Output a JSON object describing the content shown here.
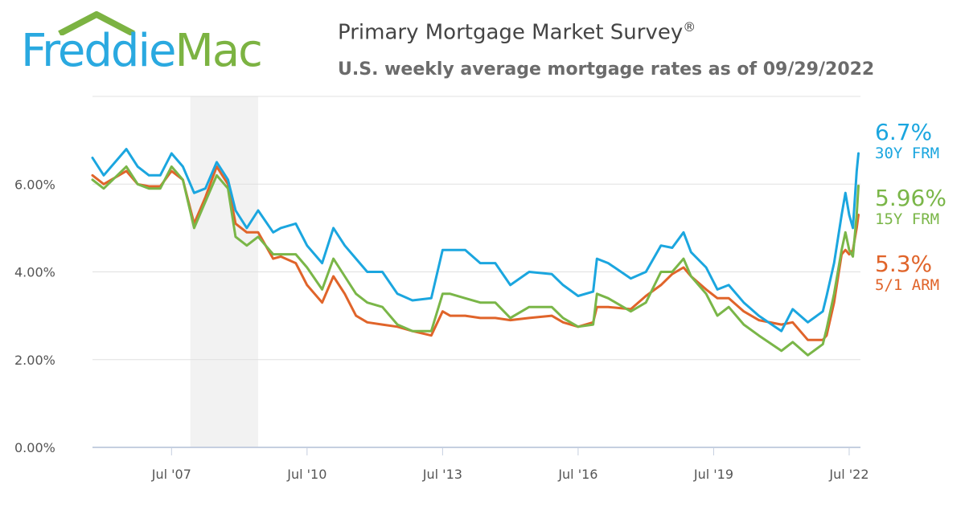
{
  "logo": {
    "part1": "Freddie",
    "part2": "Mac",
    "roof_color": "#7cb342"
  },
  "header": {
    "title": "Primary Mortgage Market Survey",
    "title_mark": "®",
    "subtitle": "U.S. weekly average mortgage rates as of 09/29/2022"
  },
  "chart_data": {
    "type": "line",
    "title": "Primary Mortgage Market Survey®",
    "subtitle": "U.S. weekly average mortgage rates as of 09/29/2022",
    "xlabel": "",
    "ylabel": "",
    "xlim": [
      "2005-10",
      "2022-10"
    ],
    "ylim": [
      0,
      8
    ],
    "x_ticks": [
      {
        "date": "2007-07",
        "label": "Jul '07"
      },
      {
        "date": "2010-07",
        "label": "Jul '10"
      },
      {
        "date": "2013-07",
        "label": "Jul '13"
      },
      {
        "date": "2016-07",
        "label": "Jul '16"
      },
      {
        "date": "2019-07",
        "label": "Jul '19"
      },
      {
        "date": "2022-07",
        "label": "Jul '22"
      }
    ],
    "y_ticks": [
      {
        "value": 0,
        "label": "0.00%"
      },
      {
        "value": 2,
        "label": "2.00%"
      },
      {
        "value": 4,
        "label": "4.00%"
      },
      {
        "value": 6,
        "label": "6.00%"
      }
    ],
    "grid": true,
    "shaded_period": {
      "start": "2007-12",
      "end": "2009-06",
      "color": "#f2f2f2"
    },
    "legend_placement": "right",
    "series": [
      {
        "name": "30Y FRM",
        "label": "6.7%",
        "color": "#1ba6df",
        "points": [
          [
            "2005-10",
            6.6
          ],
          [
            "2006-01",
            6.2
          ],
          [
            "2006-07",
            6.8
          ],
          [
            "2006-10",
            6.4
          ],
          [
            "2007-01",
            6.2
          ],
          [
            "2007-04",
            6.2
          ],
          [
            "2007-07",
            6.7
          ],
          [
            "2007-10",
            6.4
          ],
          [
            "2008-01",
            5.8
          ],
          [
            "2008-04",
            5.9
          ],
          [
            "2008-07",
            6.5
          ],
          [
            "2008-10",
            6.1
          ],
          [
            "2008-12",
            5.4
          ],
          [
            "2009-03",
            5.0
          ],
          [
            "2009-06",
            5.4
          ],
          [
            "2009-10",
            4.9
          ],
          [
            "2009-12",
            5.0
          ],
          [
            "2010-04",
            5.1
          ],
          [
            "2010-07",
            4.6
          ],
          [
            "2010-11",
            4.2
          ],
          [
            "2011-02",
            5.0
          ],
          [
            "2011-05",
            4.6
          ],
          [
            "2011-08",
            4.3
          ],
          [
            "2011-11",
            4.0
          ],
          [
            "2012-03",
            4.0
          ],
          [
            "2012-07",
            3.5
          ],
          [
            "2012-11",
            3.35
          ],
          [
            "2013-04",
            3.4
          ],
          [
            "2013-07",
            4.5
          ],
          [
            "2013-09",
            4.5
          ],
          [
            "2014-01",
            4.5
          ],
          [
            "2014-05",
            4.2
          ],
          [
            "2014-09",
            4.2
          ],
          [
            "2015-01",
            3.7
          ],
          [
            "2015-06",
            4.0
          ],
          [
            "2015-12",
            3.95
          ],
          [
            "2016-03",
            3.7
          ],
          [
            "2016-07",
            3.45
          ],
          [
            "2016-11",
            3.55
          ],
          [
            "2016-12",
            4.3
          ],
          [
            "2017-03",
            4.2
          ],
          [
            "2017-09",
            3.85
          ],
          [
            "2018-01",
            4.0
          ],
          [
            "2018-05",
            4.6
          ],
          [
            "2018-08",
            4.55
          ],
          [
            "2018-11",
            4.9
          ],
          [
            "2019-01",
            4.45
          ],
          [
            "2019-05",
            4.1
          ],
          [
            "2019-08",
            3.6
          ],
          [
            "2019-11",
            3.7
          ],
          [
            "2020-03",
            3.3
          ],
          [
            "2020-07",
            3.0
          ],
          [
            "2021-01",
            2.65
          ],
          [
            "2021-04",
            3.15
          ],
          [
            "2021-08",
            2.85
          ],
          [
            "2021-12",
            3.1
          ],
          [
            "2022-01",
            3.45
          ],
          [
            "2022-03",
            4.2
          ],
          [
            "2022-05",
            5.3
          ],
          [
            "2022-06",
            5.8
          ],
          [
            "2022-07",
            5.3
          ],
          [
            "2022-08",
            5.0
          ],
          [
            "2022-09",
            6.29
          ],
          [
            "2022-09-29",
            6.7
          ]
        ]
      },
      {
        "name": "15Y FRM",
        "label": "5.96%",
        "color": "#7ab648",
        "points": [
          [
            "2005-10",
            6.1
          ],
          [
            "2006-01",
            5.9
          ],
          [
            "2006-07",
            6.4
          ],
          [
            "2006-10",
            6.0
          ],
          [
            "2007-01",
            5.9
          ],
          [
            "2007-04",
            5.9
          ],
          [
            "2007-07",
            6.4
          ],
          [
            "2007-10",
            6.1
          ],
          [
            "2008-01",
            5.0
          ],
          [
            "2008-04",
            5.6
          ],
          [
            "2008-07",
            6.2
          ],
          [
            "2008-10",
            5.9
          ],
          [
            "2008-12",
            4.8
          ],
          [
            "2009-03",
            4.6
          ],
          [
            "2009-06",
            4.8
          ],
          [
            "2009-10",
            4.4
          ],
          [
            "2009-12",
            4.4
          ],
          [
            "2010-04",
            4.4
          ],
          [
            "2010-07",
            4.1
          ],
          [
            "2010-11",
            3.6
          ],
          [
            "2011-02",
            4.3
          ],
          [
            "2011-05",
            3.9
          ],
          [
            "2011-08",
            3.5
          ],
          [
            "2011-11",
            3.3
          ],
          [
            "2012-03",
            3.2
          ],
          [
            "2012-07",
            2.8
          ],
          [
            "2012-11",
            2.65
          ],
          [
            "2013-04",
            2.65
          ],
          [
            "2013-07",
            3.5
          ],
          [
            "2013-09",
            3.5
          ],
          [
            "2014-01",
            3.4
          ],
          [
            "2014-05",
            3.3
          ],
          [
            "2014-09",
            3.3
          ],
          [
            "2015-01",
            2.95
          ],
          [
            "2015-06",
            3.2
          ],
          [
            "2015-12",
            3.2
          ],
          [
            "2016-03",
            2.95
          ],
          [
            "2016-07",
            2.75
          ],
          [
            "2016-11",
            2.8
          ],
          [
            "2016-12",
            3.5
          ],
          [
            "2017-03",
            3.4
          ],
          [
            "2017-09",
            3.1
          ],
          [
            "2018-01",
            3.3
          ],
          [
            "2018-05",
            4.0
          ],
          [
            "2018-08",
            4.0
          ],
          [
            "2018-11",
            4.3
          ],
          [
            "2019-01",
            3.9
          ],
          [
            "2019-05",
            3.5
          ],
          [
            "2019-08",
            3.0
          ],
          [
            "2019-11",
            3.2
          ],
          [
            "2020-03",
            2.8
          ],
          [
            "2020-07",
            2.55
          ],
          [
            "2021-01",
            2.2
          ],
          [
            "2021-04",
            2.4
          ],
          [
            "2021-08",
            2.1
          ],
          [
            "2021-12",
            2.35
          ],
          [
            "2022-01",
            2.7
          ],
          [
            "2022-03",
            3.5
          ],
          [
            "2022-05",
            4.5
          ],
          [
            "2022-06",
            4.9
          ],
          [
            "2022-07",
            4.5
          ],
          [
            "2022-08",
            4.35
          ],
          [
            "2022-09",
            5.3
          ],
          [
            "2022-09-29",
            5.96
          ]
        ]
      },
      {
        "name": "5/1 ARM",
        "label": "5.3%",
        "color": "#e0642a",
        "points": [
          [
            "2005-10",
            6.2
          ],
          [
            "2006-01",
            6.0
          ],
          [
            "2006-07",
            6.3
          ],
          [
            "2006-10",
            6.0
          ],
          [
            "2007-01",
            5.95
          ],
          [
            "2007-04",
            5.95
          ],
          [
            "2007-07",
            6.3
          ],
          [
            "2007-10",
            6.1
          ],
          [
            "2008-01",
            5.1
          ],
          [
            "2008-04",
            5.7
          ],
          [
            "2008-07",
            6.4
          ],
          [
            "2008-10",
            6.0
          ],
          [
            "2008-12",
            5.1
          ],
          [
            "2009-03",
            4.9
          ],
          [
            "2009-06",
            4.9
          ],
          [
            "2009-10",
            4.3
          ],
          [
            "2009-12",
            4.35
          ],
          [
            "2010-04",
            4.2
          ],
          [
            "2010-07",
            3.7
          ],
          [
            "2010-11",
            3.3
          ],
          [
            "2011-02",
            3.9
          ],
          [
            "2011-05",
            3.5
          ],
          [
            "2011-08",
            3.0
          ],
          [
            "2011-11",
            2.85
          ],
          [
            "2012-03",
            2.8
          ],
          [
            "2012-07",
            2.75
          ],
          [
            "2012-11",
            2.65
          ],
          [
            "2013-04",
            2.55
          ],
          [
            "2013-07",
            3.1
          ],
          [
            "2013-09",
            3.0
          ],
          [
            "2014-01",
            3.0
          ],
          [
            "2014-05",
            2.95
          ],
          [
            "2014-09",
            2.95
          ],
          [
            "2015-01",
            2.9
          ],
          [
            "2015-06",
            2.95
          ],
          [
            "2015-12",
            3.0
          ],
          [
            "2016-03",
            2.85
          ],
          [
            "2016-07",
            2.75
          ],
          [
            "2016-11",
            2.85
          ],
          [
            "2016-12",
            3.2
          ],
          [
            "2017-03",
            3.2
          ],
          [
            "2017-09",
            3.15
          ],
          [
            "2018-01",
            3.45
          ],
          [
            "2018-05",
            3.7
          ],
          [
            "2018-08",
            3.95
          ],
          [
            "2018-11",
            4.1
          ],
          [
            "2019-01",
            3.9
          ],
          [
            "2019-05",
            3.6
          ],
          [
            "2019-08",
            3.4
          ],
          [
            "2019-11",
            3.4
          ],
          [
            "2020-03",
            3.1
          ],
          [
            "2020-07",
            2.9
          ],
          [
            "2021-01",
            2.8
          ],
          [
            "2021-04",
            2.85
          ],
          [
            "2021-08",
            2.45
          ],
          [
            "2021-12",
            2.45
          ],
          [
            "2022-01",
            2.55
          ],
          [
            "2022-03",
            3.3
          ],
          [
            "2022-05",
            4.4
          ],
          [
            "2022-06",
            4.5
          ],
          [
            "2022-07",
            4.4
          ],
          [
            "2022-08",
            4.5
          ],
          [
            "2022-09",
            5.0
          ],
          [
            "2022-09-29",
            5.3
          ]
        ]
      }
    ]
  }
}
